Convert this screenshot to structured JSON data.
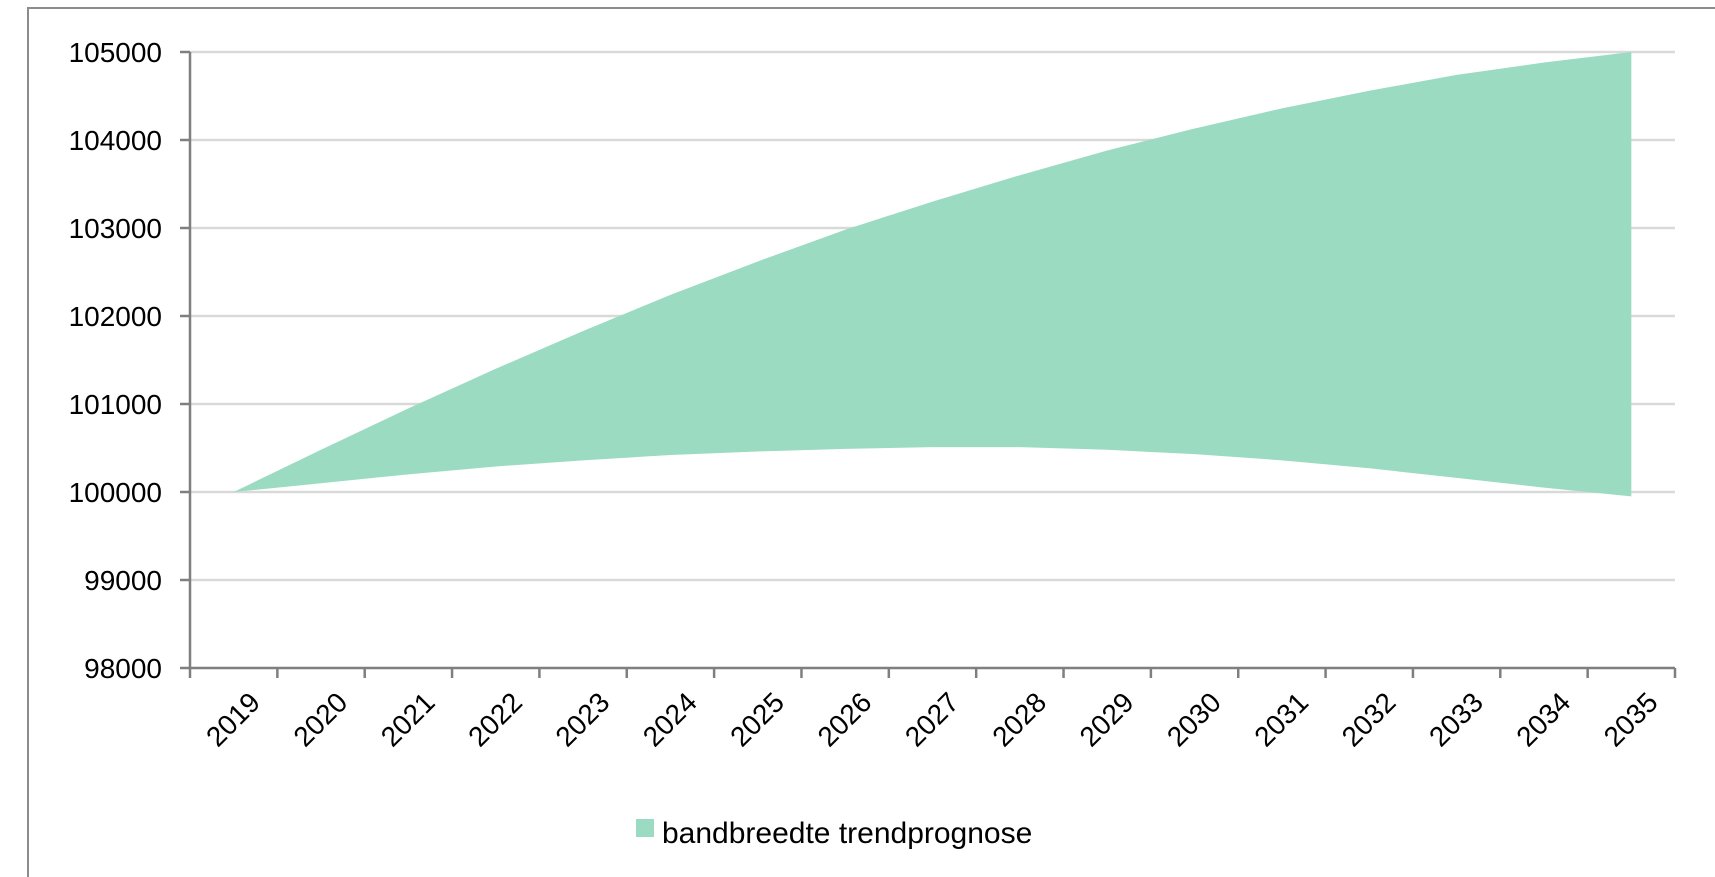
{
  "chart_data": {
    "type": "area",
    "title": "",
    "xlabel": "",
    "ylabel": "",
    "x": [
      "2019",
      "2020",
      "2021",
      "2022",
      "2023",
      "2024",
      "2025",
      "2026",
      "2027",
      "2028",
      "2029",
      "2030",
      "2031",
      "2032",
      "2033",
      "2034",
      "2035"
    ],
    "ylim": [
      98000,
      105000
    ],
    "yticks": [
      98000,
      99000,
      100000,
      101000,
      102000,
      103000,
      104000,
      105000
    ],
    "grid": true,
    "legend_position": "bottom",
    "series": [
      {
        "name": "bandbreedte trendprognose",
        "color": "#9bdbc1",
        "upper": [
          100000,
          100480,
          100950,
          101400,
          101830,
          102240,
          102620,
          102980,
          103300,
          103600,
          103880,
          104130,
          104360,
          104560,
          104740,
          104880,
          105000
        ],
        "lower": [
          100000,
          100100,
          100200,
          100290,
          100360,
          100420,
          100460,
          100490,
          100510,
          100510,
          100480,
          100430,
          100360,
          100270,
          100160,
          100050,
          99950
        ]
      }
    ]
  }
}
